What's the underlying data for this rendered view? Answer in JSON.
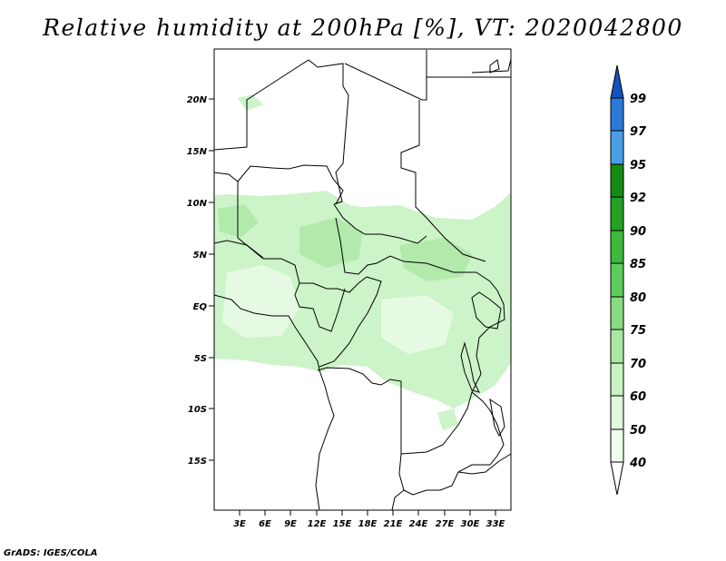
{
  "title": "Relative humidity at 200hPa [%], VT: 2020042800",
  "credit": "GrADS: IGES/COLA",
  "map": {
    "lat_labels": [
      "20N",
      "15N",
      "10N",
      "5N",
      "EQ",
      "5S",
      "10S",
      "15S"
    ],
    "lon_labels": [
      "3E",
      "6E",
      "9E",
      "12E",
      "15E",
      "18E",
      "21E",
      "24E",
      "27E",
      "30E",
      "33E"
    ]
  },
  "colorbar": {
    "labels": [
      "99",
      "97",
      "95",
      "92",
      "90",
      "85",
      "80",
      "75",
      "70",
      "60",
      "50",
      "40"
    ],
    "colors": {
      "c40": "#f0fcee",
      "c50": "#e0f8dc",
      "c60": "#c8f2c2",
      "c70": "#ace8a4",
      "c75": "#88dc80",
      "c80": "#5ccd5a",
      "c85": "#3cba3c",
      "c90": "#24a224",
      "c92": "#138c13",
      "c95": "#4a9ee8",
      "c97": "#2b7ad8",
      "c99": "#1454c0"
    }
  }
}
